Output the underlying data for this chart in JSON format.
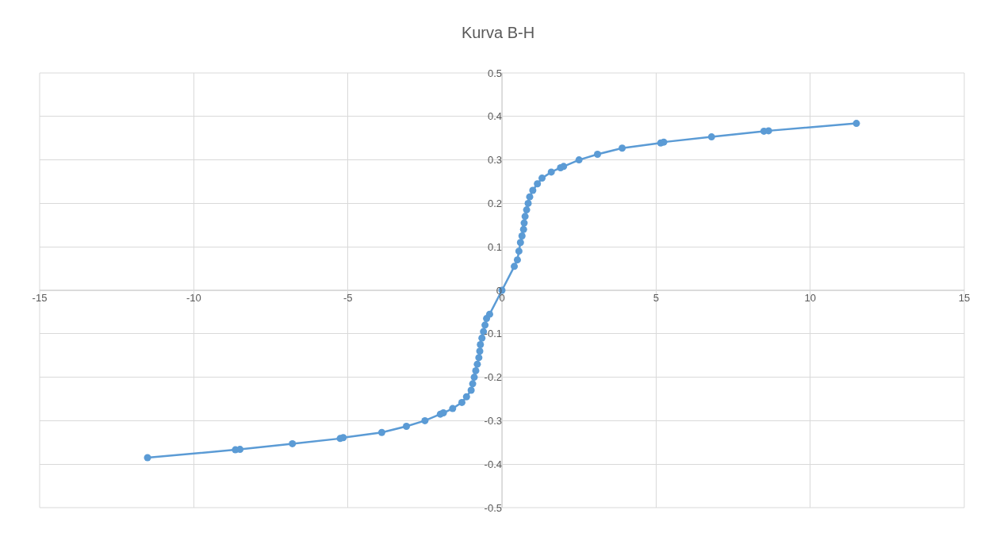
{
  "chart_data": {
    "type": "line",
    "title": "Kurva B-H",
    "marker": "circle",
    "grid": true,
    "legend": false,
    "xlim": [
      -15,
      15
    ],
    "xticks": [
      -15,
      -10,
      -5,
      0,
      5,
      10,
      15
    ],
    "ylim": [
      -0.5,
      0.5
    ],
    "yticks": [
      -0.5,
      -0.4,
      -0.3,
      -0.2,
      -0.1,
      0,
      0.1,
      0.2,
      0.3,
      0.4,
      0.5
    ],
    "series": [
      {
        "color": "#5b9bd5",
        "x": [
          -11.5,
          -8.65,
          -8.5,
          -6.8,
          -5.25,
          -5.15,
          -3.9,
          -3.1,
          -2.5,
          -2.0,
          -1.9,
          -1.6,
          -1.3,
          -1.15,
          -1.0,
          -0.95,
          -0.9,
          -0.85,
          -0.8,
          -0.75,
          -0.72,
          -0.7,
          -0.65,
          -0.6,
          -0.55,
          -0.5,
          -0.4,
          0,
          0.4,
          0.5,
          0.55,
          0.6,
          0.65,
          0.7,
          0.72,
          0.75,
          0.8,
          0.85,
          0.9,
          1.0,
          1.15,
          1.3,
          1.6,
          1.9,
          2.0,
          2.5,
          3.1,
          3.9,
          5.15,
          5.25,
          6.8,
          8.5,
          8.65,
          11.5
        ],
        "values": [
          -0.385,
          -0.367,
          -0.366,
          -0.353,
          -0.341,
          -0.339,
          -0.327,
          -0.313,
          -0.3,
          -0.285,
          -0.282,
          -0.272,
          -0.258,
          -0.245,
          -0.23,
          -0.215,
          -0.2,
          -0.185,
          -0.17,
          -0.155,
          -0.14,
          -0.125,
          -0.11,
          -0.095,
          -0.08,
          -0.065,
          -0.055,
          0,
          0.055,
          0.07,
          0.09,
          0.11,
          0.125,
          0.14,
          0.155,
          0.17,
          0.185,
          0.2,
          0.215,
          0.23,
          0.245,
          0.258,
          0.272,
          0.282,
          0.285,
          0.3,
          0.313,
          0.327,
          0.339,
          0.341,
          0.353,
          0.366,
          0.367,
          0.384
        ]
      }
    ]
  }
}
